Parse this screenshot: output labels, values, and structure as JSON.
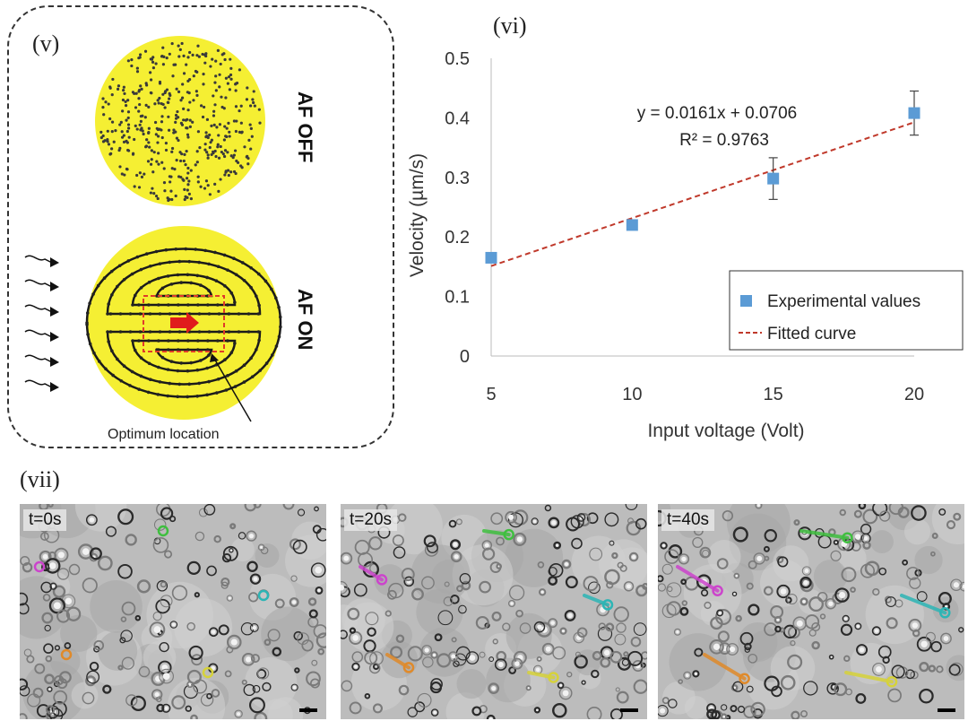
{
  "panels": {
    "v": {
      "label": "(v)",
      "af_off": "AF OFF",
      "af_on": "AF ON",
      "annotation": "Optimum location",
      "colors": {
        "disc": "#f5ef33",
        "dots": "#3a3a3a",
        "box": "#e03b2a",
        "arrow": "#e01c1c"
      }
    },
    "vi": {
      "label": "(vi)"
    },
    "vii": {
      "label": "(vii)",
      "frames": [
        {
          "time_label": "t=0s"
        },
        {
          "time_label": "t=20s"
        },
        {
          "time_label": "t=40s"
        }
      ],
      "track_colors": [
        "#3fbf3f",
        "#cc44cc",
        "#2cb5b5",
        "#e08a2a",
        "#d6d23a"
      ]
    }
  },
  "chart_data": {
    "type": "scatter",
    "xlabel": "Input voltage (Volt)",
    "ylabel": "Velocity (µm/s)",
    "xlim": [
      5,
      20
    ],
    "ylim": [
      0,
      0.5
    ],
    "x_ticks": [
      "5",
      "10",
      "15",
      "20"
    ],
    "y_ticks": [
      "0",
      "0.1",
      "0.2",
      "0.3",
      "0.4",
      "0.5"
    ],
    "grid": false,
    "legend_position": "bottom-right",
    "series": [
      {
        "name": "Experimental values",
        "color": "#5b9bd5",
        "x": [
          5,
          10,
          15,
          20
        ],
        "y": [
          0.165,
          0.22,
          0.298,
          0.408
        ],
        "error": [
          0,
          0,
          0.035,
          0.037
        ]
      },
      {
        "name": "Fitted curve",
        "color": "#c0392b",
        "style": "dashed",
        "slope": 0.0161,
        "intercept": 0.0706
      }
    ],
    "annotations": [
      "y = 0.0161x + 0.0706",
      "R² = 0.9763"
    ]
  }
}
